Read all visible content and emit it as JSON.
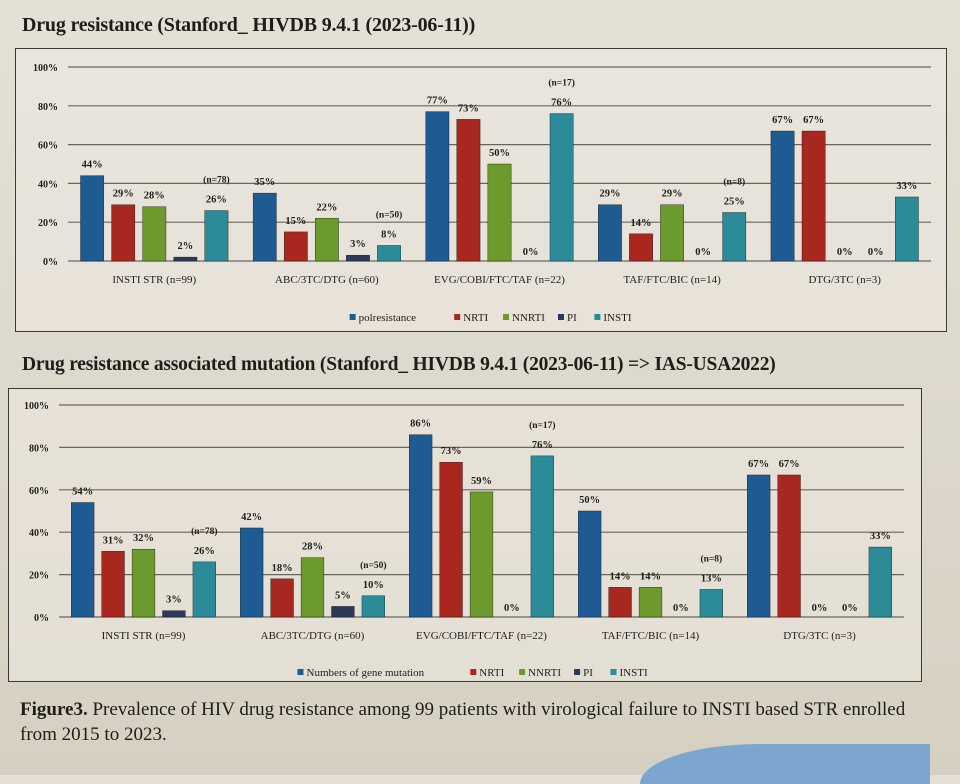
{
  "colors": {
    "series1": "#1f5b93",
    "NRTI": "#a8271f",
    "NNRTI": "#6d9a2c",
    "PI": "#2e3858",
    "INSTI": "#2b8b98",
    "grid": "#6a665e",
    "text": "#1f1d1a"
  },
  "chart_data": [
    {
      "type": "bar",
      "title": "Drug resistance (Stanford_ HIVDB 9.4.1 (2023-06-11))",
      "xlabel": "",
      "ylabel": "",
      "ylim": [
        0,
        100
      ],
      "yticks": [
        "0%",
        "20%",
        "40%",
        "60%",
        "80%",
        "100%"
      ],
      "grid": true,
      "legend_position": "bottom",
      "categories": [
        "INSTI STR (n=99)",
        "ABC/3TC/DTG (n=60)",
        "EVG/COBI/FTC/TAF (n=22)",
        "TAF/FTC/BIC (n=14)",
        "DTG/3TC (n=3)"
      ],
      "series": [
        {
          "name": "polresistance",
          "values": [
            44,
            35,
            77,
            29,
            67
          ],
          "labels": [
            "44%",
            "35%",
            "77%",
            "29%",
            "67%"
          ]
        },
        {
          "name": "NRTI",
          "values": [
            29,
            15,
            73,
            14,
            67
          ],
          "labels": [
            "29%",
            "15%",
            "73%",
            "14%",
            "67%"
          ]
        },
        {
          "name": "NNRTI",
          "values": [
            28,
            22,
            50,
            29,
            0
          ],
          "labels": [
            "28%",
            "22%",
            "50%",
            "29%",
            "0%"
          ]
        },
        {
          "name": "PI",
          "values": [
            2,
            3,
            0,
            0,
            0
          ],
          "labels": [
            "2%",
            "3%",
            "0%",
            "0%",
            "0%"
          ]
        },
        {
          "name": "INSTI",
          "values": [
            26,
            8,
            76,
            25,
            33
          ],
          "labels": [
            "26%",
            "8%",
            "76%",
            "25%",
            "33%"
          ]
        }
      ],
      "insti_n_annotations": [
        "(n=78)",
        "(n=50)",
        "(n=17)",
        "(n=8)",
        ""
      ]
    },
    {
      "type": "bar",
      "title": "Drug resistance associated mutation (Stanford_ HIVDB 9.4.1 (2023-06-11) => IAS-USA2022)",
      "xlabel": "",
      "ylabel": "",
      "ylim": [
        0,
        100
      ],
      "yticks": [
        "0%",
        "20%",
        "40%",
        "60%",
        "80%",
        "100%"
      ],
      "grid": true,
      "legend_position": "bottom",
      "categories": [
        "INSTI STR (n=99)",
        "ABC/3TC/DTG (n=60)",
        "EVG/COBI/FTC/TAF (n=22)",
        "TAF/FTC/BIC (n=14)",
        "DTG/3TC (n=3)"
      ],
      "series": [
        {
          "name": "Numbers of gene mutation",
          "values": [
            54,
            42,
            86,
            50,
            67
          ],
          "labels": [
            "54%",
            "42%",
            "86%",
            "50%",
            "67%"
          ]
        },
        {
          "name": "NRTI",
          "values": [
            31,
            18,
            73,
            14,
            67
          ],
          "labels": [
            "31%",
            "18%",
            "73%",
            "14%",
            "67%"
          ]
        },
        {
          "name": "NNRTI",
          "values": [
            32,
            28,
            59,
            14,
            0
          ],
          "labels": [
            "32%",
            "28%",
            "59%",
            "14%",
            "0%"
          ]
        },
        {
          "name": "PI",
          "values": [
            3,
            5,
            0,
            0,
            0
          ],
          "labels": [
            "3%",
            "5%",
            "0%",
            "0%",
            "0%"
          ]
        },
        {
          "name": "INSTI",
          "values": [
            26,
            10,
            76,
            13,
            33
          ],
          "labels": [
            "26%",
            "10%",
            "76%",
            "13%",
            "33%"
          ]
        }
      ],
      "insti_n_annotations": [
        "(n=78)",
        "(n=50)",
        "(n=17)",
        "(n=8)",
        ""
      ]
    }
  ],
  "caption": {
    "label": "Figure3.",
    "text": " Prevalence of HIV drug resistance among 99 patients with virological failure to INSTI based STR enrolled from 2015 to 2023."
  }
}
